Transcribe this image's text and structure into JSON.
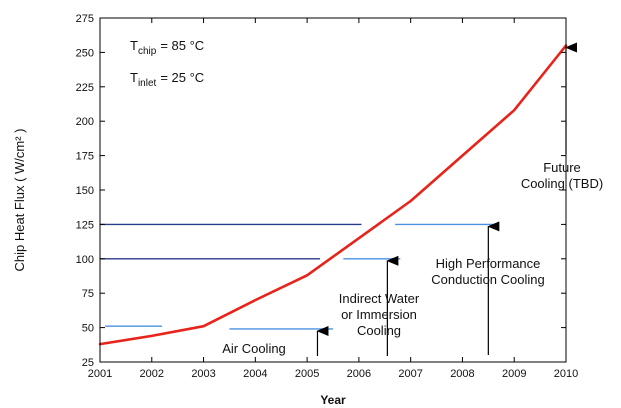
{
  "chart_data": {
    "type": "line",
    "title": "",
    "xlabel": "Year",
    "ylabel": "Chip Heat Flux ( W/cm² )",
    "xlim": [
      2001,
      2010
    ],
    "ylim": [
      25,
      275
    ],
    "x_ticks": [
      2001,
      2002,
      2003,
      2004,
      2005,
      2006,
      2007,
      2008,
      2009,
      2010
    ],
    "y_ticks": [
      25,
      50,
      75,
      100,
      125,
      150,
      175,
      200,
      225,
      250,
      275
    ],
    "grid": false,
    "series": [
      {
        "name": "",
        "color": "#e8231a",
        "x": [
          2001,
          2002,
          2003,
          2004,
          2005,
          2006,
          2007,
          2008,
          2009,
          2010
        ],
        "y": [
          38,
          44,
          51,
          70,
          88,
          115,
          142,
          175,
          208,
          255
        ]
      }
    ],
    "conditions": [
      {
        "symbol": "T",
        "subscript": "chip",
        "value": "= 85 °C"
      },
      {
        "symbol": "T",
        "subscript": "inlet",
        "value": "= 25 °C"
      }
    ],
    "range_lines": [
      {
        "x_start": 2001,
        "x_end": 2006.05,
        "y": 125,
        "color": "#2a3a8c"
      },
      {
        "x_start": 2001,
        "x_end": 2005.25,
        "y": 100,
        "color": "#2a3a8c"
      },
      {
        "x_start": 2001.1,
        "x_end": 2002.2,
        "y": 51,
        "color": "#4a90e2"
      },
      {
        "x_start": 2003.5,
        "x_end": 2005.5,
        "y": 49,
        "color": "#4a90e2"
      },
      {
        "x_start": 2005.7,
        "x_end": 2006.8,
        "y": 100,
        "color": "#4a90e2"
      },
      {
        "x_start": 2006.7,
        "x_end": 2008.7,
        "y": 125,
        "color": "#4a90e2"
      }
    ],
    "annotations": [
      {
        "lines": [
          "Air Cooling"
        ],
        "arrow_x": 2005.2,
        "arrow_from_y": 25,
        "arrow_to_y": 49
      },
      {
        "lines": [
          "Indirect Water",
          "or Immersion",
          "Cooling"
        ],
        "arrow_x": 2006.55,
        "arrow_from_y": 25,
        "arrow_to_y": 100
      },
      {
        "lines": [
          "High Performance",
          "Conduction Cooling"
        ],
        "arrow_x": 2008.5,
        "arrow_from_y": 25,
        "arrow_to_y": 125
      },
      {
        "lines": [
          "Future",
          "Cooling (TBD)"
        ],
        "arrow_x": 2010,
        "arrow_from_y": 25,
        "arrow_to_y": 255
      }
    ]
  }
}
